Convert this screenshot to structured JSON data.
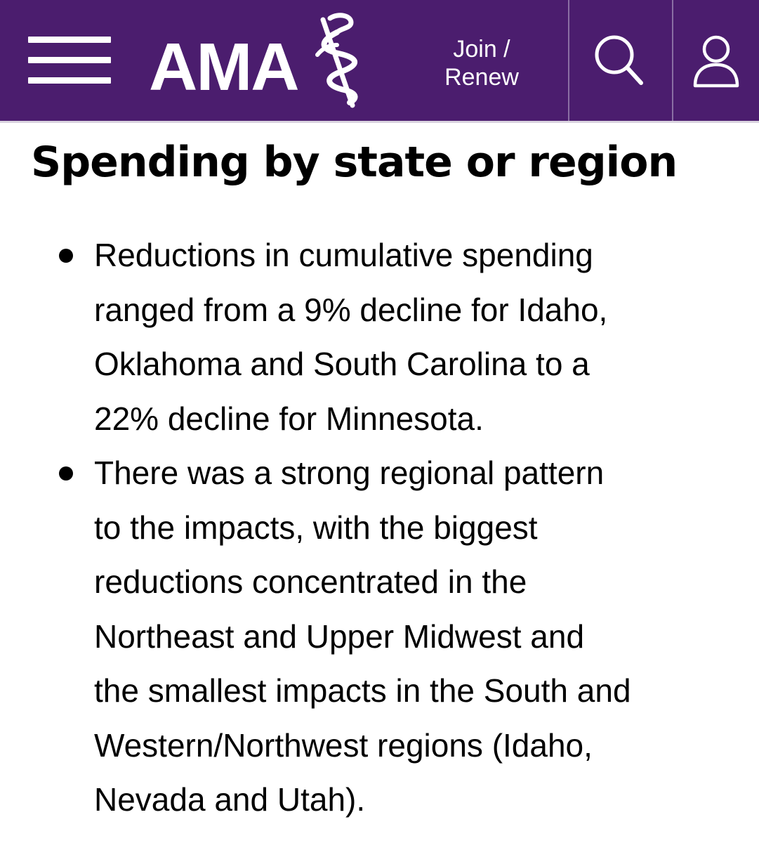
{
  "header": {
    "menu_icon": "hamburger-menu-icon",
    "logo_text": "AMA",
    "logo_icon": "staff-of-asclepius-icon",
    "join_label_line1": "Join /",
    "join_label_line2": "Renew",
    "search_icon": "search-icon",
    "account_icon": "user-icon",
    "colors": {
      "background": "#4b1d6e",
      "foreground": "#ffffff"
    }
  },
  "main": {
    "title": "Spending by state or region",
    "bullets": [
      {
        "lines": [
          "Reductions in cumulative spending",
          "ranged from a 9% decline for Idaho,",
          "Oklahoma and South Carolina to a",
          "22% decline for Minnesota."
        ]
      },
      {
        "lines": [
          "There was a strong regional pattern",
          "to the impacts, with the biggest",
          "reductions concentrated in the",
          "Northeast and Upper Midwest and",
          "the smallest impacts in the South and",
          "Western/Northwest regions (Idaho,",
          "Nevada and Utah)."
        ]
      }
    ]
  }
}
